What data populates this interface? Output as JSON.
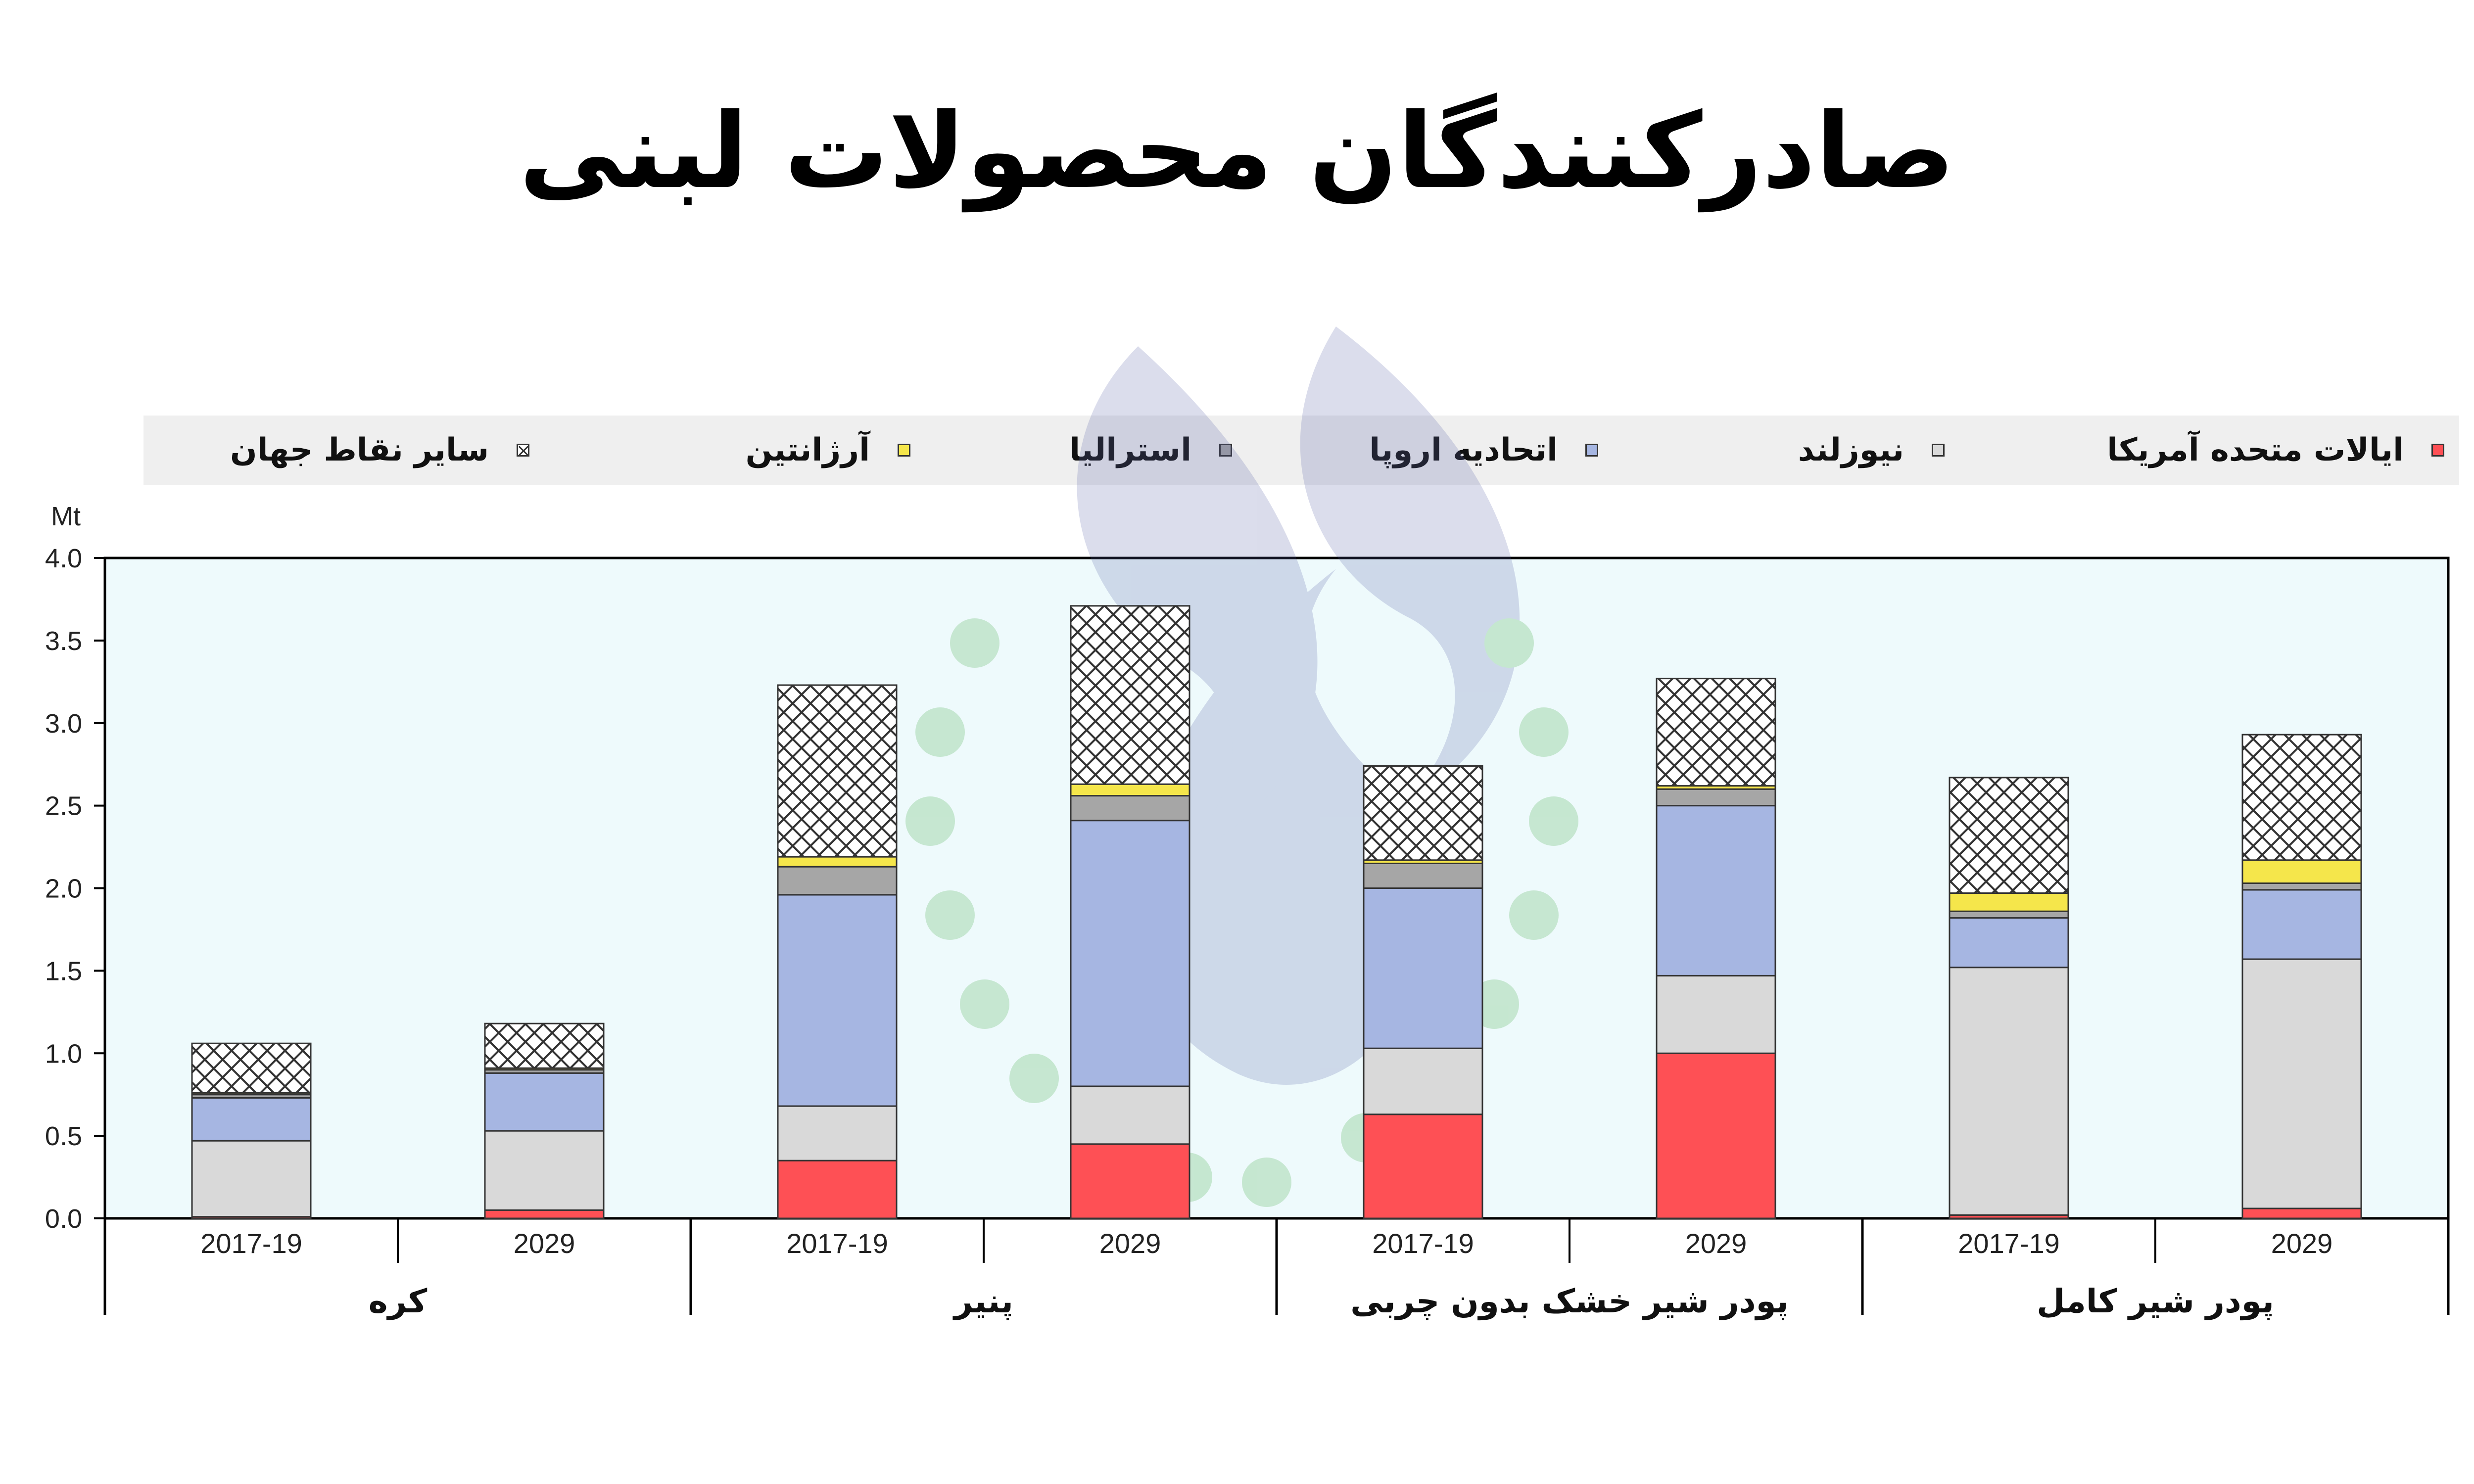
{
  "title": "صادرکنندگان محصولات لبنی",
  "colors": {
    "usa": "#fe5055",
    "nz": "#d9d9d9",
    "eu": "#a6b6e2",
    "aus": "#a6a6a6",
    "arg": "#f5e64b",
    "row": "#ffffff",
    "plot_bg": "#eefafc"
  },
  "chart_data": {
    "type": "bar",
    "stacked": true,
    "unit": "Mt",
    "ylim": [
      0,
      4.0
    ],
    "yticks": [
      "0.0",
      "0.5",
      "1.0",
      "1.5",
      "2.0",
      "2.5",
      "3.0",
      "3.5",
      "4.0"
    ],
    "legend_position": "top",
    "legend": [
      {
        "key": "usa",
        "name": "ایالات متحده آمریکا"
      },
      {
        "key": "nz",
        "name": "نیوزلند"
      },
      {
        "key": "eu",
        "name": "اتحادیه اروپا"
      },
      {
        "key": "aus",
        "name": "استرالیا"
      },
      {
        "key": "arg",
        "name": "آرژانتین"
      },
      {
        "key": "row",
        "name": "سایر نقاط جهان"
      }
    ],
    "groups": [
      {
        "name": "کره",
        "bars": [
          {
            "label": "2017-19",
            "usa": 0.01,
            "nz": 0.46,
            "eu": 0.26,
            "aus": 0.02,
            "arg": 0.01,
            "row": 0.3
          },
          {
            "label": "2029",
            "usa": 0.05,
            "nz": 0.48,
            "eu": 0.35,
            "aus": 0.02,
            "arg": 0.01,
            "row": 0.27
          }
        ]
      },
      {
        "name": "پنیر",
        "bars": [
          {
            "label": "2017-19",
            "usa": 0.35,
            "nz": 0.33,
            "eu": 1.28,
            "aus": 0.17,
            "arg": 0.06,
            "row": 1.04
          },
          {
            "label": "2029",
            "usa": 0.45,
            "nz": 0.35,
            "eu": 1.61,
            "aus": 0.15,
            "arg": 0.07,
            "row": 1.08
          }
        ]
      },
      {
        "name": "پودر شیر خشک بدون چربی",
        "bars": [
          {
            "label": "2017-19",
            "usa": 0.63,
            "nz": 0.4,
            "eu": 0.97,
            "aus": 0.15,
            "arg": 0.02,
            "row": 0.57
          },
          {
            "label": "2029",
            "usa": 1.0,
            "nz": 0.47,
            "eu": 1.03,
            "aus": 0.1,
            "arg": 0.02,
            "row": 0.65
          }
        ]
      },
      {
        "name": "پودر شیر کامل",
        "bars": [
          {
            "label": "2017-19",
            "usa": 0.02,
            "nz": 1.5,
            "eu": 0.3,
            "aus": 0.04,
            "arg": 0.11,
            "row": 0.7
          },
          {
            "label": "2029",
            "usa": 0.06,
            "nz": 1.51,
            "eu": 0.42,
            "aus": 0.04,
            "arg": 0.14,
            "row": 0.76
          }
        ]
      }
    ]
  }
}
